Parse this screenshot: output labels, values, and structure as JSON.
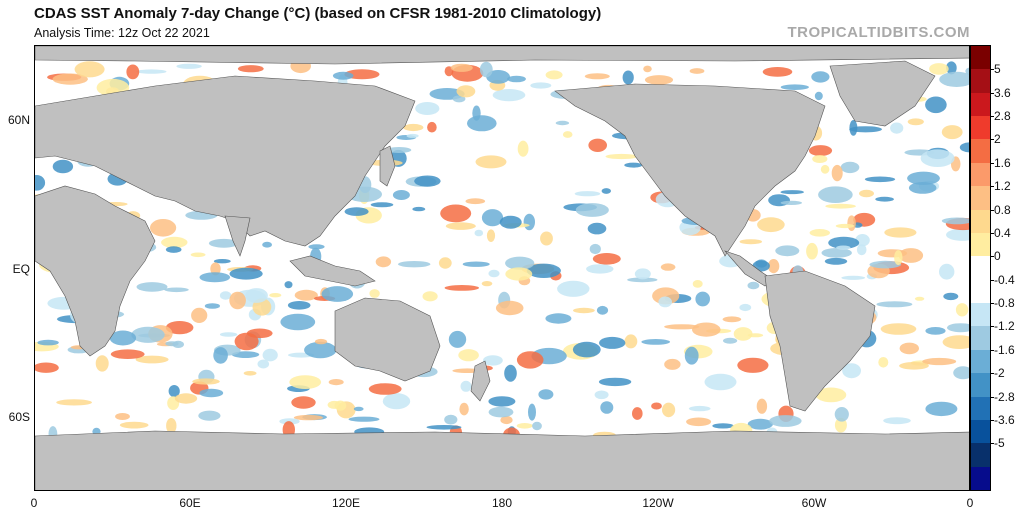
{
  "header": {
    "title": "CDAS SST Anomaly 7-day Change (°C) (based on CFSR 1981-2010 Climatology)",
    "subtitle": "Analysis Time: 12z Oct 22 2021",
    "brand": "TROPICALTIDBITS.COM"
  },
  "axes": {
    "lat_labels": [
      "60N",
      "EQ",
      "60S"
    ],
    "lon_labels": [
      "0",
      "60E",
      "120E",
      "180",
      "120W",
      "60W",
      "0"
    ]
  },
  "colorbar": {
    "labels": [
      "5",
      "3.6",
      "2.8",
      "2",
      "1.6",
      "1.2",
      "0.8",
      "0.4",
      "0",
      "-0.4",
      "-0.8",
      "-1.2",
      "-1.6",
      "-2",
      "-2.8",
      "-3.6",
      "-5"
    ],
    "colors": [
      "#7a0000",
      "#a50f15",
      "#cb181d",
      "#ef3b2c",
      "#f46d43",
      "#fb9a6a",
      "#fdbf84",
      "#fed98e",
      "#ffeda0",
      "#ffffff",
      "#ffffff",
      "#c6e6f5",
      "#9ecae1",
      "#6baed6",
      "#4292c6",
      "#2171b5",
      "#08519c",
      "#08306b",
      "#060c8c"
    ]
  },
  "legend_colors": {
    "land": "#c0c0c0",
    "ocean_neutral": "#ffffff",
    "warm": "#fed98e",
    "cool": "#c6e6f5"
  }
}
